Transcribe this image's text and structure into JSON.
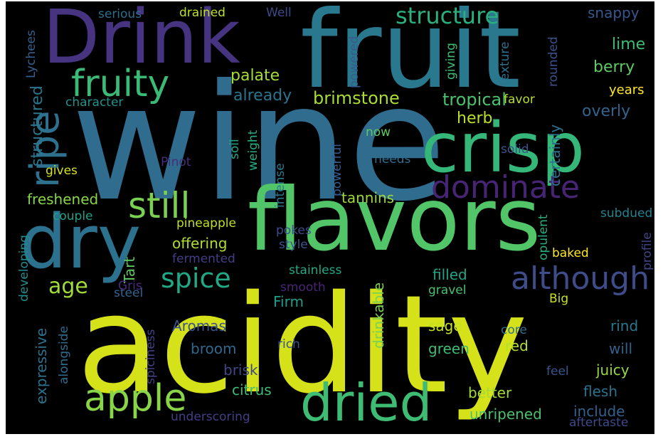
{
  "words": [
    {
      "text": "wine",
      "color": "#2f6c8e"
    },
    {
      "text": "acidity",
      "color": "#d5e21a"
    },
    {
      "text": "fruit",
      "color": "#2a788e"
    },
    {
      "text": "Drink",
      "color": "#463480"
    },
    {
      "text": "flavors",
      "color": "#52c569"
    },
    {
      "text": "crisp",
      "color": "#35b779"
    },
    {
      "text": "dry",
      "color": "#2c728e"
    },
    {
      "text": "dried",
      "color": "#3fbc73"
    },
    {
      "text": "ripe",
      "color": "#2d718e"
    },
    {
      "text": "fruity",
      "color": "#3aba76"
    },
    {
      "text": "apple",
      "color": "#89d548"
    },
    {
      "text": "still",
      "color": "#7ad151"
    },
    {
      "text": "dominate",
      "color": "#482475"
    },
    {
      "text": "although",
      "color": "#3e4c8a"
    },
    {
      "text": "spice",
      "color": "#22a884"
    },
    {
      "text": "structure",
      "color": "#2ab07f"
    },
    {
      "text": "age",
      "color": "#a2da37"
    },
    {
      "text": "palate",
      "color": "#a5db36"
    },
    {
      "text": "brimstone",
      "color": "#a8db34"
    },
    {
      "text": "tropical",
      "color": "#4ac16d"
    },
    {
      "text": "already",
      "color": "#2c738e"
    },
    {
      "text": "herb",
      "color": "#bddf26"
    },
    {
      "text": "structured",
      "color": "#2a768e"
    },
    {
      "text": "certainly",
      "color": "#2d708e"
    },
    {
      "text": "overly",
      "color": "#33638d"
    },
    {
      "text": "berry",
      "color": "#5ec962"
    },
    {
      "text": "lime",
      "color": "#3fbc73"
    },
    {
      "text": "snappy",
      "color": "#39568c"
    },
    {
      "text": "years",
      "color": "#fde725"
    },
    {
      "text": "rounded",
      "color": "#3b528b"
    },
    {
      "text": "texture",
      "color": "#2c728e"
    },
    {
      "text": "giving",
      "color": "#3dbc74"
    },
    {
      "text": "favor",
      "color": "#b5de2b"
    },
    {
      "text": "powered",
      "color": "#38598c"
    },
    {
      "text": "serious",
      "color": "#2e6e8e"
    },
    {
      "text": "drained",
      "color": "#bddf26"
    },
    {
      "text": "Well",
      "color": "#3e4a89"
    },
    {
      "text": "Lychees",
      "color": "#355f8d"
    },
    {
      "text": "character",
      "color": "#21918c"
    },
    {
      "text": "now",
      "color": "#5ec962"
    },
    {
      "text": "needs",
      "color": "#2f6c8e"
    },
    {
      "text": "solid",
      "color": "#3b528b"
    },
    {
      "text": "Pinot",
      "color": "#472d7b"
    },
    {
      "text": "gives",
      "color": "#d8e219"
    },
    {
      "text": "soil",
      "color": "#22a884"
    },
    {
      "text": "weight",
      "color": "#28ae80"
    },
    {
      "text": "intense",
      "color": "#2a788e"
    },
    {
      "text": "powerful",
      "color": "#375a8c"
    },
    {
      "text": "tannins",
      "color": "#9bd93c"
    },
    {
      "text": "freshened",
      "color": "#89d548"
    },
    {
      "text": "couple",
      "color": "#1fa088"
    },
    {
      "text": "pineapple",
      "color": "#c2df23"
    },
    {
      "text": "offering",
      "color": "#b0dd2f"
    },
    {
      "text": "pokes",
      "color": "#3e4c8a"
    },
    {
      "text": "style",
      "color": "#39568c"
    },
    {
      "text": "fermented",
      "color": "#433e85"
    },
    {
      "text": "Tart",
      "color": "#5ec962"
    },
    {
      "text": "smooth",
      "color": "#482475"
    },
    {
      "text": "stainless",
      "color": "#22a884"
    },
    {
      "text": "filled",
      "color": "#20a386"
    },
    {
      "text": "baked",
      "color": "#fde725"
    },
    {
      "text": "opulent",
      "color": "#29af7f"
    },
    {
      "text": "subdued",
      "color": "#26828e"
    },
    {
      "text": "profile",
      "color": "#414487"
    },
    {
      "text": "developing",
      "color": "#228c8d"
    },
    {
      "text": "expressive",
      "color": "#2c728e"
    },
    {
      "text": "steel",
      "color": "#34618d"
    },
    {
      "text": "Gris",
      "color": "#472c7a"
    },
    {
      "text": "Firm",
      "color": "#1e9c89"
    },
    {
      "text": "drinkable",
      "color": "#7ad151"
    },
    {
      "text": "gravel",
      "color": "#4ac16d"
    },
    {
      "text": "Big",
      "color": "#c8e020"
    },
    {
      "text": "Aromas",
      "color": "#3b528b"
    },
    {
      "text": "sage",
      "color": "#c5e021"
    },
    {
      "text": "rind",
      "color": "#2a788e"
    },
    {
      "text": "alongside",
      "color": "#2f6c8e"
    },
    {
      "text": "broom",
      "color": "#31688e"
    },
    {
      "text": "spiciness",
      "color": "#433e85"
    },
    {
      "text": "green",
      "color": "#3fbc73"
    },
    {
      "text": "red",
      "color": "#b5de2b"
    },
    {
      "text": "core",
      "color": "#2e6f8e"
    },
    {
      "text": "will",
      "color": "#35608d"
    },
    {
      "text": "rich",
      "color": "#3b528b"
    },
    {
      "text": "juicy",
      "color": "#97d83f"
    },
    {
      "text": "feel",
      "color": "#3a548c"
    },
    {
      "text": "brisk",
      "color": "#3f4889"
    },
    {
      "text": "better",
      "color": "#a5db36"
    },
    {
      "text": "flesh",
      "color": "#2c728e"
    },
    {
      "text": "citrus",
      "color": "#3fbc73"
    },
    {
      "text": "include",
      "color": "#34618d"
    },
    {
      "text": "unripened",
      "color": "#4ac16d"
    },
    {
      "text": "underscoring",
      "color": "#433e85"
    },
    {
      "text": "aftertaste",
      "color": "#3e4a89"
    }
  ]
}
